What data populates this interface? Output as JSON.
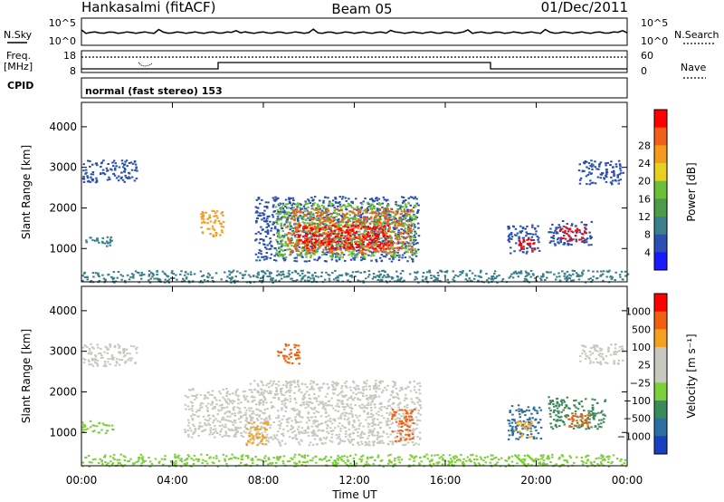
{
  "header": {
    "station": "Hankasalmi (fitACF)",
    "beam": "Beam 05",
    "date": "01/Dec/2011"
  },
  "noise_panel": {
    "left_label": "N.Sky",
    "right_label": "N.Search",
    "left_ticks": [
      "10^5",
      "10^0"
    ],
    "right_ticks": [
      "10^5",
      "10^0"
    ]
  },
  "freq_panel": {
    "left_label_line1": "Freq.",
    "left_label_line2": "[MHz]",
    "left_ticks": [
      "18",
      "8"
    ],
    "right_ticks": [
      "60",
      "0"
    ],
    "right_label": "Nave"
  },
  "cpid_panel": {
    "label": "CPID",
    "text": "normal (fast stereo) 153"
  },
  "chart_data": [
    {
      "type": "heatmap",
      "name": "power",
      "ylabel": "Slant Range [km]",
      "ylim": [
        180,
        4600
      ],
      "yticks": [
        "1000",
        "2000",
        "3000",
        "4000"
      ],
      "colorbar": {
        "label": "Power [dB]",
        "ticks": [
          "4",
          "8",
          "12",
          "16",
          "20",
          "24",
          "28"
        ],
        "colors": [
          "#1a1aff",
          "#2a4fb0",
          "#3a7f8a",
          "#4c9c4c",
          "#6cbf3a",
          "#e8d020",
          "#f49a1c",
          "#f06018",
          "#ff0000"
        ]
      },
      "regions": [
        {
          "t0": 7.6,
          "t1": 14.8,
          "r0": 700,
          "r1": 2300,
          "color": "#2a4fb0"
        },
        {
          "t0": 8.5,
          "t1": 14.7,
          "r0": 800,
          "r1": 2150,
          "color": "#6cbf3a"
        },
        {
          "t0": 9.0,
          "t1": 14.5,
          "r0": 900,
          "r1": 2000,
          "color": "#f06018"
        },
        {
          "t0": 9.5,
          "t1": 13.5,
          "r0": 1000,
          "r1": 1600,
          "color": "#ff0000"
        },
        {
          "t0": 0.0,
          "t1": 2.4,
          "r0": 2650,
          "r1": 3200,
          "color": "#2a4fb0"
        },
        {
          "t0": 0.1,
          "t1": 1.4,
          "r0": 1050,
          "r1": 1300,
          "color": "#3a7f8a"
        },
        {
          "t0": 5.2,
          "t1": 6.2,
          "r0": 1300,
          "r1": 2000,
          "color": "#f49a1c"
        },
        {
          "t0": 18.7,
          "t1": 20.1,
          "r0": 900,
          "r1": 1600,
          "color": "#2a4fb0"
        },
        {
          "t0": 19.2,
          "t1": 19.9,
          "r0": 950,
          "r1": 1250,
          "color": "#ff0000"
        },
        {
          "t0": 20.5,
          "t1": 22.4,
          "r0": 1100,
          "r1": 1700,
          "color": "#2a4fb0"
        },
        {
          "t0": 21.0,
          "t1": 22.2,
          "r0": 1200,
          "r1": 1550,
          "color": "#ff0000"
        },
        {
          "t0": 21.8,
          "t1": 23.8,
          "r0": 2600,
          "r1": 3200,
          "color": "#2a4fb0"
        },
        {
          "t0": 0.0,
          "t1": 24.0,
          "r0": 180,
          "r1": 480,
          "color": "#3a7f8a"
        }
      ]
    },
    {
      "type": "heatmap",
      "name": "velocity",
      "ylabel": "Slant Range [km]",
      "ylim": [
        180,
        4600
      ],
      "yticks": [
        "1000",
        "2000",
        "3000",
        "4000"
      ],
      "colorbar": {
        "label": "Velocity [m s⁻¹]",
        "ticks": [
          "1000",
          "500",
          "100",
          "25",
          "−25",
          "−100",
          "−500",
          "−1000"
        ],
        "colors": [
          "#1a3fbf",
          "#2a6fa0",
          "#3a8a5a",
          "#7dcf3a",
          "#c8c8c0",
          "#c8c8c0",
          "#f4a020",
          "#f06010",
          "#ff0000"
        ]
      },
      "regions": [
        {
          "t0": 7.3,
          "t1": 14.9,
          "r0": 700,
          "r1": 2300,
          "color": "#c8c8c0"
        },
        {
          "t0": 4.5,
          "t1": 7.5,
          "r0": 900,
          "r1": 2100,
          "color": "#c8c8c0"
        },
        {
          "t0": 0.0,
          "t1": 2.4,
          "r0": 2650,
          "r1": 3200,
          "color": "#c8c8c0"
        },
        {
          "t0": 8.6,
          "t1": 9.6,
          "r0": 2700,
          "r1": 3200,
          "color": "#f06010"
        },
        {
          "t0": 7.2,
          "t1": 8.2,
          "r0": 700,
          "r1": 1300,
          "color": "#f4a020"
        },
        {
          "t0": 13.6,
          "t1": 14.6,
          "r0": 800,
          "r1": 1600,
          "color": "#f06010"
        },
        {
          "t0": 18.7,
          "t1": 20.2,
          "r0": 850,
          "r1": 1700,
          "color": "#2a6fa0"
        },
        {
          "t0": 19.0,
          "t1": 19.8,
          "r0": 900,
          "r1": 1300,
          "color": "#f4a020"
        },
        {
          "t0": 20.5,
          "t1": 23.0,
          "r0": 1100,
          "r1": 1900,
          "color": "#3a8a5a"
        },
        {
          "t0": 21.2,
          "t1": 22.3,
          "r0": 1150,
          "r1": 1500,
          "color": "#f06010"
        },
        {
          "t0": 0.0,
          "t1": 1.4,
          "r0": 1000,
          "r1": 1300,
          "color": "#7dcf3a"
        },
        {
          "t0": 21.8,
          "t1": 23.8,
          "r0": 2700,
          "r1": 3200,
          "color": "#c8c8c0"
        },
        {
          "t0": 0.0,
          "t1": 24.0,
          "r0": 180,
          "r1": 480,
          "color": "#7dcf3a"
        }
      ]
    }
  ],
  "x_axis": {
    "label": "Time UT",
    "ticks": [
      "00:00",
      "04:00",
      "08:00",
      "12:00",
      "16:00",
      "20:00",
      "00:00"
    ],
    "xlim": [
      0,
      24
    ]
  }
}
